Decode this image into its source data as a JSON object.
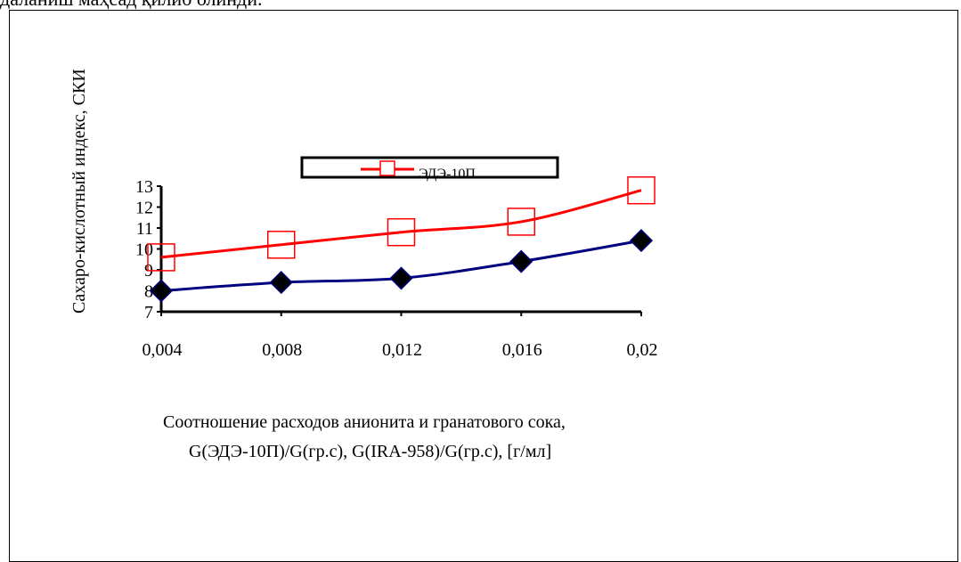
{
  "header_text": "даланиш маҳсад қилиб олинди.",
  "chart_data": {
    "type": "line",
    "x": [
      "0,004",
      "0,008",
      "0,012",
      "0,016",
      "0,02"
    ],
    "ylim": [
      7,
      13
    ],
    "yticks": [
      "7",
      "8",
      "9",
      "10",
      "11",
      "12",
      "13"
    ],
    "ylabel": "Сахаро-кислотный индекс, СКИ",
    "xlabel_line1": "Соотношение расходов анионита и гранатового сока,",
    "xlabel_line2": "G(ЭДЭ-10П)/G(гр.с), G(IRA-958)/G(гр.с),  [г/мл]",
    "series": [
      {
        "name": "ЭДЭ-10П",
        "color": "#ff0000",
        "marker": "square-outline",
        "values": [
          9.6,
          10.2,
          10.8,
          11.3,
          12.8
        ]
      },
      {
        "name": "",
        "color": "#000080",
        "marker": "diamond-filled",
        "values": [
          8.0,
          8.4,
          8.6,
          9.4,
          10.4
        ]
      }
    ],
    "legend": {
      "placement": "top",
      "entries": [
        "ЭДЭ-10П"
      ]
    }
  }
}
